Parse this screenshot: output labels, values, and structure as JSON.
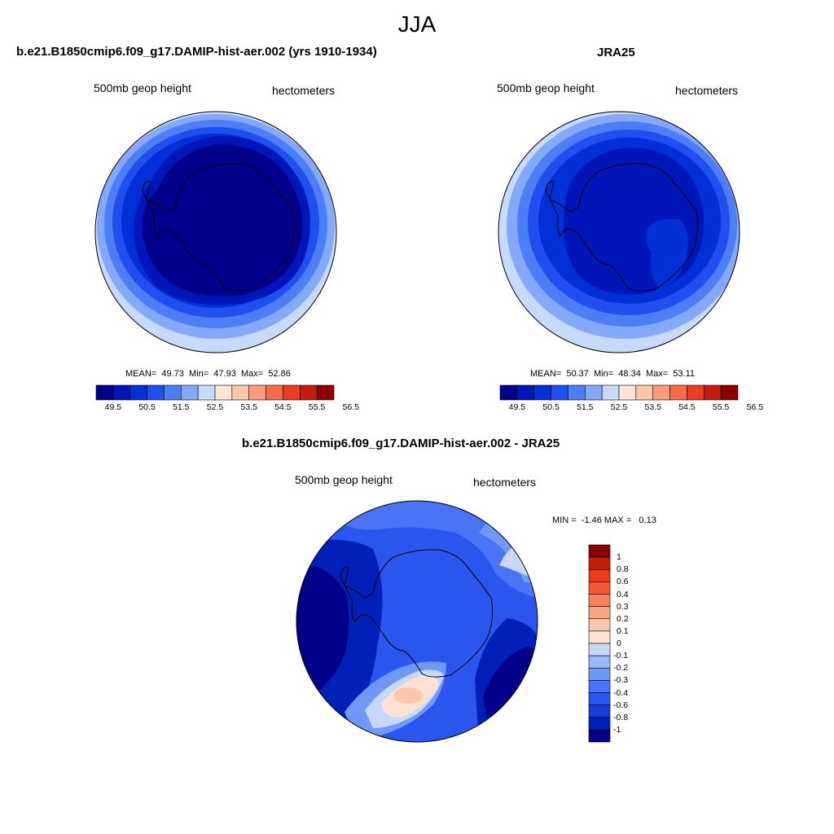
{
  "figure": {
    "season": "JJA"
  },
  "panels": [
    {
      "title": "b.e21.B1850cmip6.f09_g17.DAMIP-hist-aer.002 (yrs 1910-1934)",
      "left_label": "500mb geop height",
      "right_label": "hectometers",
      "stats": {
        "mean_label": "MEAN=",
        "mean": "49.73",
        "min_label": "Min=",
        "min": "47.93",
        "max_label": "Max=",
        "max": "52.86"
      }
    },
    {
      "title": "JRA25",
      "left_label": "500mb geop height",
      "right_label": "hectometers",
      "stats": {
        "mean_label": "MEAN=",
        "mean": "50.37",
        "min_label": "Min=",
        "min": "48.34",
        "max_label": "Max=",
        "max": "53.11"
      }
    },
    {
      "title": "b.e21.B1850cmip6.f09_g17.DAMIP-hist-aer.002 - JRA25",
      "left_label": "500mb geop height",
      "right_label": "hectometers",
      "stats": {
        "min_label": "MIN =",
        "min": "-1.46",
        "max_label": "MAX =",
        "max": "0.13"
      }
    }
  ],
  "colorbars": {
    "abs": {
      "colors": [
        "#00008b",
        "#0016b8",
        "#0030d6",
        "#1f4fef",
        "#4d7ef7",
        "#85a9fa",
        "#c6dafc",
        "#fde4d4",
        "#fdc6ab",
        "#fb9c7c",
        "#f86a48",
        "#eb3d22",
        "#c21d0e",
        "#8b0000"
      ],
      "tick_labels": [
        "49.5",
        "50.5",
        "51.5",
        "52.5",
        "53.5",
        "54.5",
        "55.5",
        "56.5"
      ]
    },
    "diff": {
      "colors": [
        "#00008b",
        "#0020b8",
        "#1a3dd8",
        "#2b55ef",
        "#4a74f5",
        "#7098f7",
        "#9bb8f8",
        "#c7d9fb",
        "#fbe2d3",
        "#fbc8ae",
        "#f9a886",
        "#f6835c",
        "#f55a2f",
        "#ea3a17",
        "#c01f08",
        "#8b0000"
      ],
      "tick_labels": [
        "1",
        "0.8",
        "0.6",
        "0.4",
        "0.3",
        "0.2",
        "0.1",
        "0",
        "-0.1",
        "-0.2",
        "-0.3",
        "-0.4",
        "-0.6",
        "-0.8",
        "-1"
      ]
    }
  },
  "map_colors": {
    "model": [
      "#c6dafc",
      "#85a9fa",
      "#4d7ef7",
      "#1f4fef",
      "#0030d6",
      "#0016b8",
      "#00008b"
    ],
    "obs": [
      "#c6dafc",
      "#85a9fa",
      "#4d7ef7",
      "#1f4fef",
      "#0030d6",
      "#0016b8",
      "#00008b"
    ],
    "diff_base": "#2b55ef",
    "diff_dark": "#00008b",
    "diff_mid": "#0020b8",
    "diff_light": "#7098f7",
    "diff_pale": "#c7d9fb",
    "diff_pos1": "#fbe2d3",
    "diff_pos2": "#fbc8ae"
  }
}
